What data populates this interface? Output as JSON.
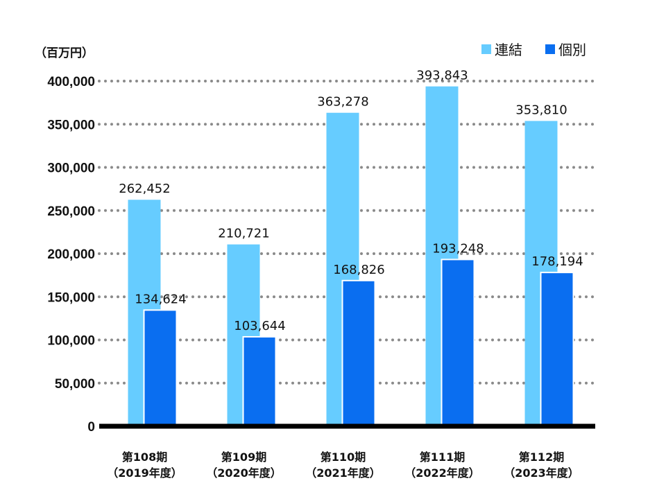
{
  "chart_data": {
    "type": "bar",
    "unit_label": "（百万円）",
    "categories": [
      {
        "line1": "第108期",
        "line2": "（2019年度）"
      },
      {
        "line1": "第109期",
        "line2": "（2020年度）"
      },
      {
        "line1": "第110期",
        "line2": "（2021年度）"
      },
      {
        "line1": "第111期",
        "line2": "（2022年度）"
      },
      {
        "line1": "第112期",
        "line2": "（2023年度）"
      }
    ],
    "series": [
      {
        "name": "連結",
        "color": "#66CCFF",
        "values": [
          262452,
          210721,
          363278,
          393843,
          353810
        ],
        "labels": [
          "262,452",
          "210,721",
          "363,278",
          "393,843",
          "353,810"
        ]
      },
      {
        "name": "個別",
        "color": "#0A6EF0",
        "values": [
          134624,
          103644,
          168826,
          193248,
          178194
        ],
        "labels": [
          "134,624",
          "103,644",
          "168,826",
          "193,248",
          "178,194"
        ]
      }
    ],
    "ylim": [
      0,
      400000
    ],
    "yticks": [
      0,
      50000,
      100000,
      150000,
      200000,
      250000,
      300000,
      350000,
      400000
    ],
    "ytick_labels": [
      "0",
      "50,000",
      "100,000",
      "150,000",
      "200,000",
      "250,000",
      "300,000",
      "350,000",
      "400,000"
    ],
    "grid": true,
    "legend_position": "top-right"
  }
}
